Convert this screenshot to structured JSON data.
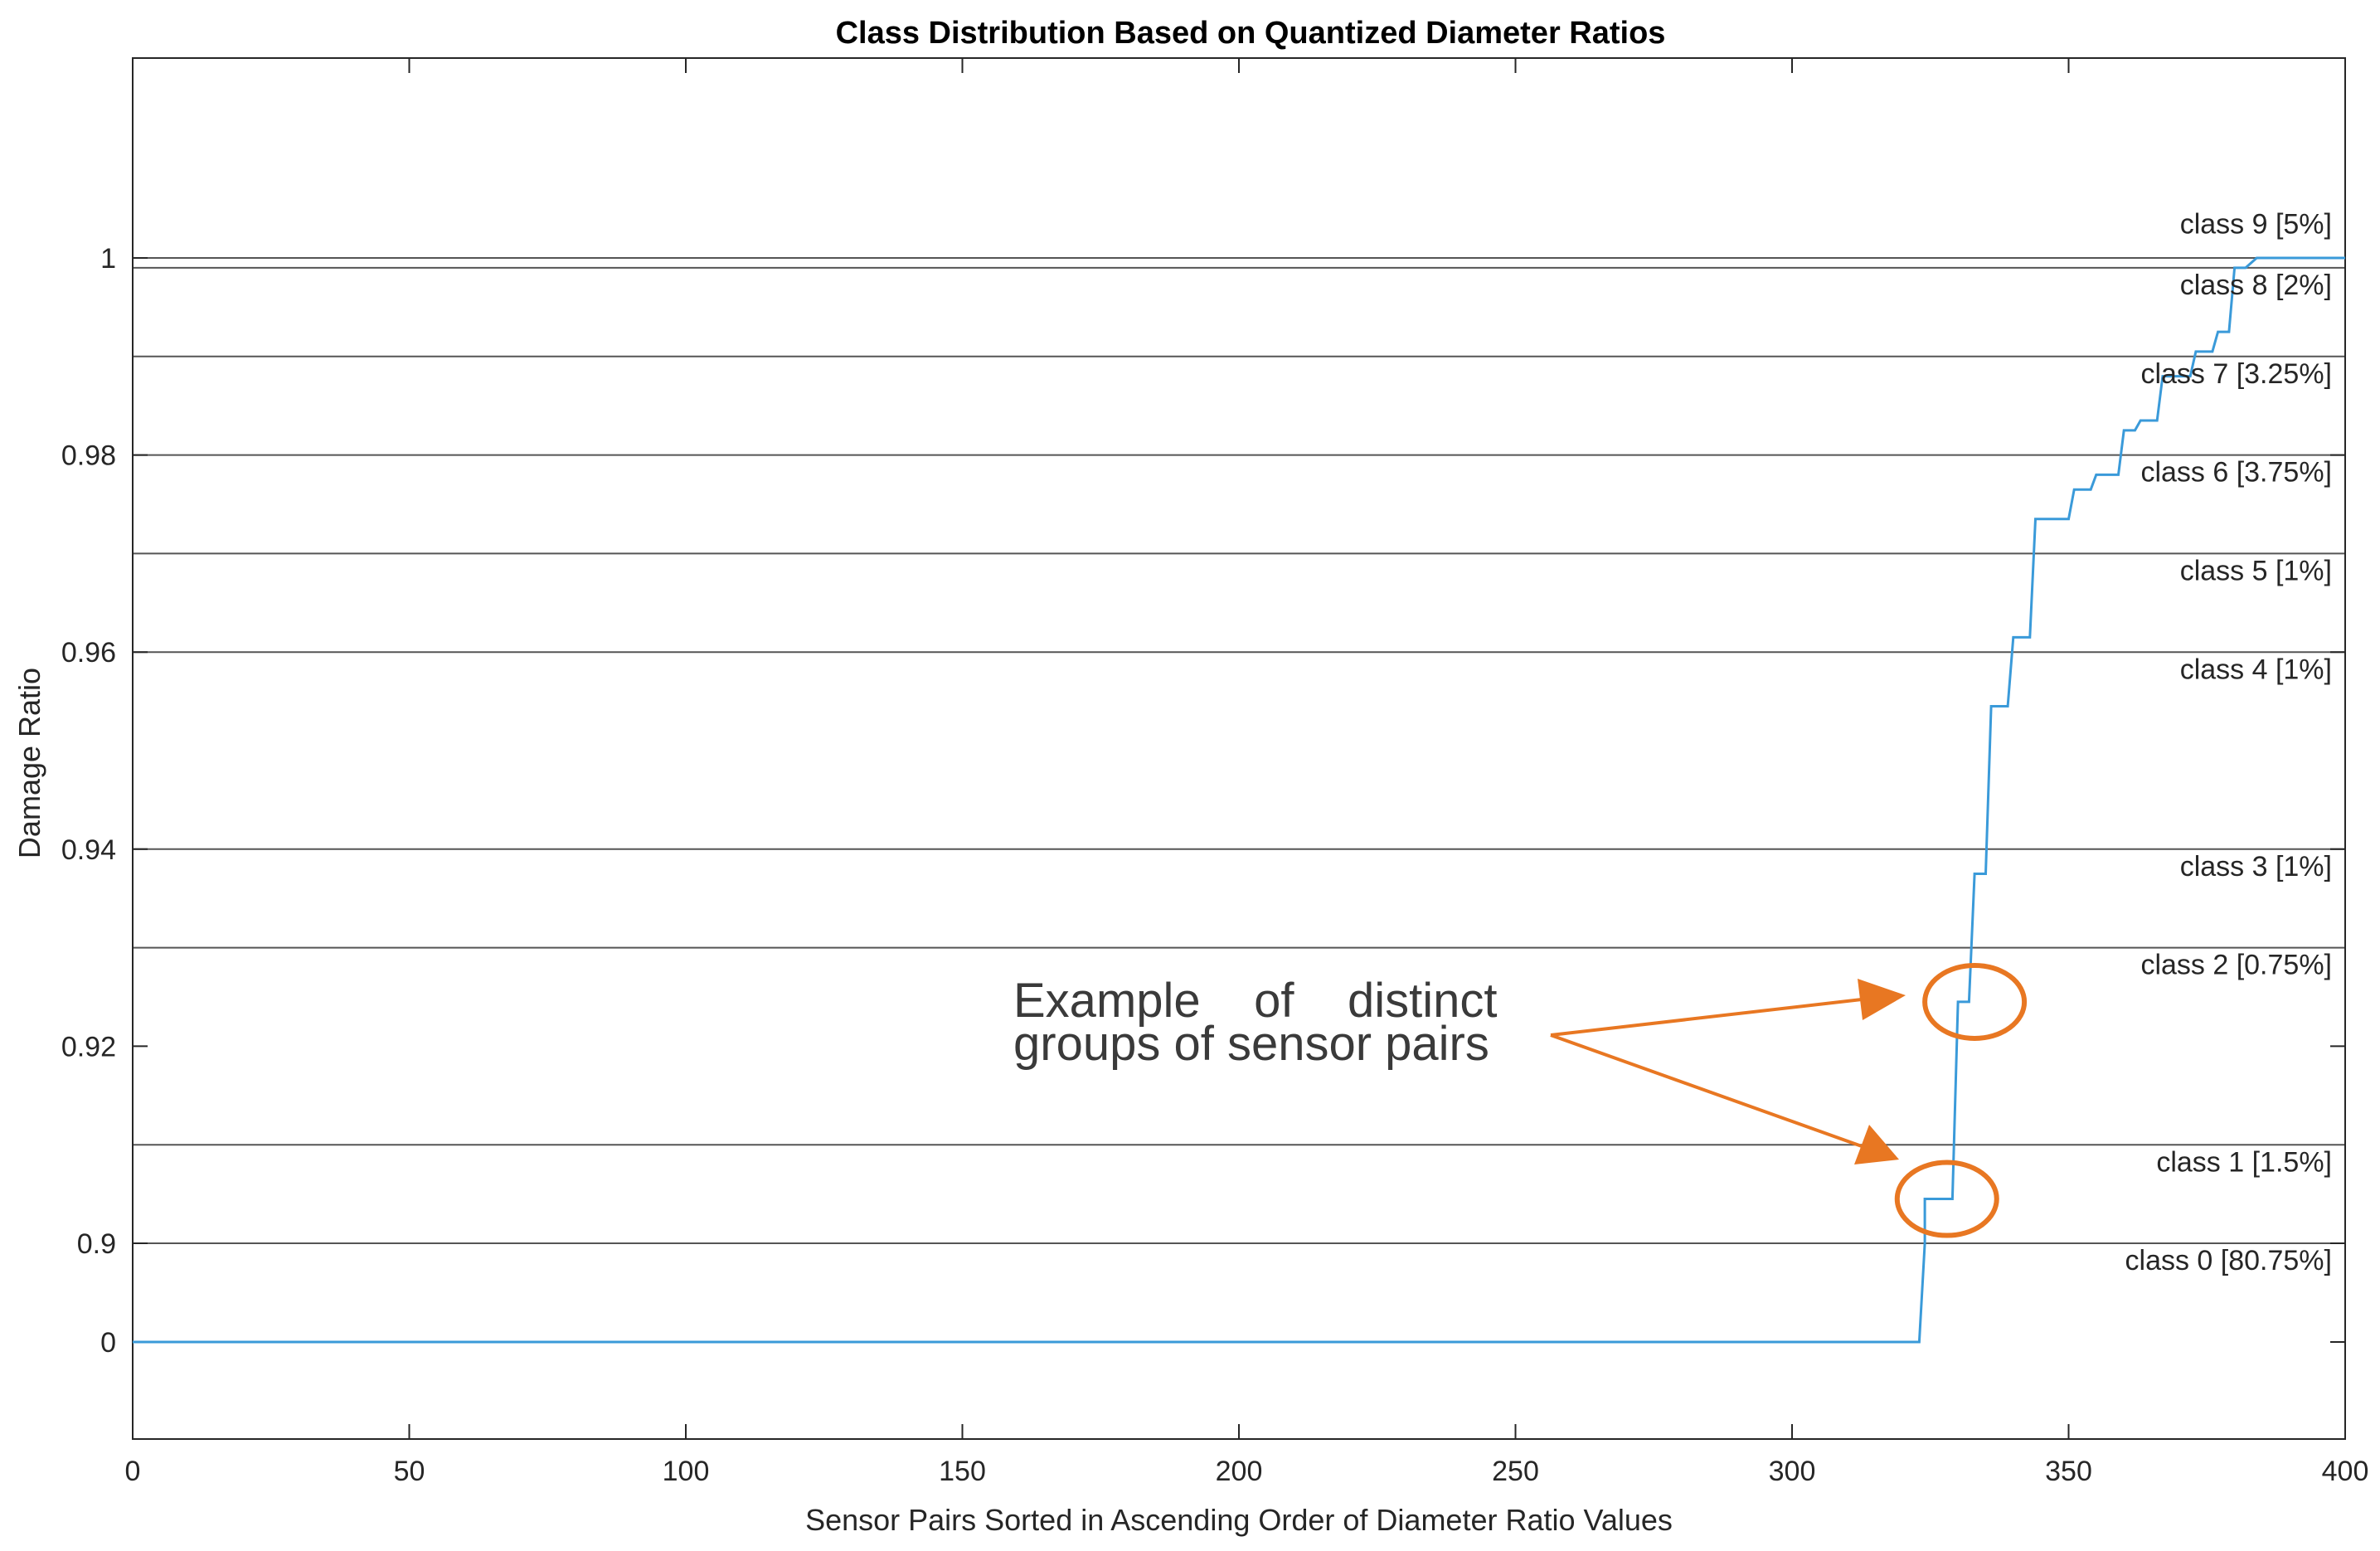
{
  "chart_data": {
    "type": "line",
    "title": "Class Distribution Based on Quantized Diameter Ratios",
    "xlabel": "Sensor Pairs Sorted in Ascending Order of Diameter Ratio Values",
    "ylabel": "Damage Ratio",
    "xlim": [
      0,
      400
    ],
    "x_ticks": [
      0,
      50,
      100,
      150,
      200,
      250,
      300,
      350,
      400
    ],
    "y_tick_labels": [
      "0",
      "0.9",
      "0.92",
      "0.94",
      "0.96",
      "0.98",
      "1"
    ],
    "y_scale_note": "axis is broken: 0 shown just below 0.9",
    "grid": false,
    "series": [
      {
        "color": "#3a9ad9",
        "points": [
          [
            0,
            0
          ],
          [
            323,
            0
          ],
          [
            324,
            0.9
          ],
          [
            324,
            0.9045
          ],
          [
            329,
            0.9045
          ],
          [
            330,
            0.9245
          ],
          [
            332,
            0.9245
          ],
          [
            333,
            0.9375
          ],
          [
            335,
            0.9375
          ],
          [
            336,
            0.9545
          ],
          [
            339,
            0.9545
          ],
          [
            340,
            0.9615
          ],
          [
            343,
            0.9615
          ],
          [
            344,
            0.9735
          ],
          [
            350,
            0.9735
          ],
          [
            351,
            0.9765
          ],
          [
            354,
            0.9765
          ],
          [
            355,
            0.978
          ],
          [
            359,
            0.978
          ],
          [
            360,
            0.9825
          ],
          [
            362,
            0.9825
          ],
          [
            363,
            0.9835
          ],
          [
            366,
            0.9835
          ],
          [
            367,
            0.988
          ],
          [
            372,
            0.988
          ],
          [
            373,
            0.9905
          ],
          [
            376,
            0.9905
          ],
          [
            377,
            0.9925
          ],
          [
            379,
            0.9925
          ],
          [
            380,
            0.999
          ],
          [
            382,
            0.999
          ],
          [
            384,
            1.0
          ],
          [
            400,
            1.0
          ]
        ]
      }
    ],
    "class_boundaries": [
      0.9,
      0.91,
      0.93,
      0.94,
      0.96,
      0.97,
      0.98,
      0.99,
      0.999,
      1.0
    ],
    "class_labels": [
      {
        "text": "class 9 [5%]",
        "y": 1.0025
      },
      {
        "text": "class 8 [2%]",
        "y": 0.9963
      },
      {
        "text": "class 7 [3.25%]",
        "y": 0.9873
      },
      {
        "text": "class 6 [3.75%]",
        "y": 0.9773
      },
      {
        "text": "class 5 [1%]",
        "y": 0.9673
      },
      {
        "text": "class 4 [1%]",
        "y": 0.9573
      },
      {
        "text": "class 3 [1%]",
        "y": 0.9373
      },
      {
        "text": "class 2 [0.75%]",
        "y": 0.9273
      },
      {
        "text": "class 1 [1.5%]",
        "y": 0.9073
      },
      {
        "text": "class 0 [80.75%]",
        "y": 0.8973
      }
    ],
    "annotation": {
      "lines": [
        "Example    of    distinct",
        "groups of sensor pairs"
      ],
      "color": "#e87722"
    }
  }
}
